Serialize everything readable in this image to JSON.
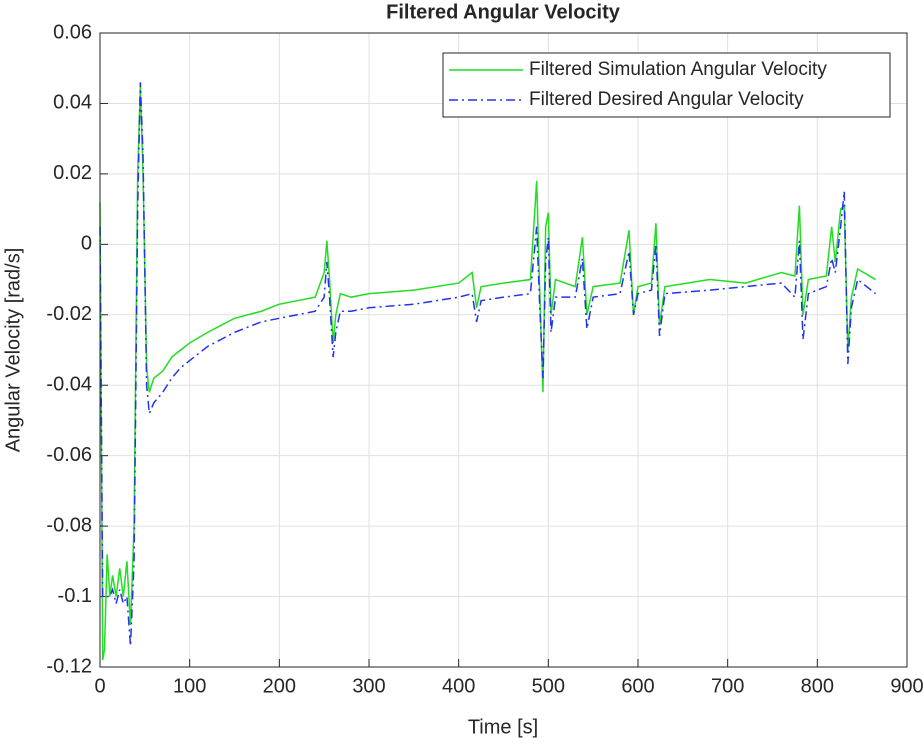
{
  "chart_data": {
    "type": "line",
    "title": "Filtered Angular Velocity",
    "xlabel": "Time [s]",
    "ylabel": "Angular Velocity [rad/s]",
    "x": [
      0,
      3,
      5,
      8,
      11,
      14,
      18,
      22,
      26,
      30,
      34,
      38,
      42,
      45,
      48,
      52,
      55,
      60,
      70,
      80,
      90,
      100,
      120,
      150,
      180,
      200,
      220,
      240,
      250,
      253,
      256,
      260,
      263,
      268,
      280,
      300,
      350,
      400,
      415,
      420,
      425,
      450,
      480,
      487,
      490,
      494,
      497,
      500,
      503,
      508,
      530,
      538,
      543,
      550,
      580,
      590,
      595,
      600,
      615,
      620,
      624,
      630,
      680,
      720,
      760,
      775,
      780,
      784,
      790,
      810,
      816,
      820,
      826,
      830,
      834,
      838,
      845,
      865
    ],
    "series": [
      {
        "name": "Filtered Simulation Angular Velocity",
        "color": "#22dd22",
        "linestyle": "solid",
        "values": [
          0.012,
          -0.118,
          -0.115,
          -0.088,
          -0.1,
          -0.094,
          -0.1,
          -0.092,
          -0.1,
          -0.09,
          -0.108,
          -0.08,
          0.02,
          0.045,
          0.02,
          -0.035,
          -0.042,
          -0.038,
          -0.036,
          -0.032,
          -0.03,
          -0.028,
          -0.025,
          -0.021,
          -0.019,
          -0.017,
          -0.016,
          -0.015,
          -0.008,
          0.001,
          -0.01,
          -0.028,
          -0.02,
          -0.014,
          -0.015,
          -0.014,
          -0.013,
          -0.011,
          -0.008,
          -0.018,
          -0.012,
          -0.011,
          -0.01,
          0.018,
          -0.01,
          -0.042,
          0.005,
          0.009,
          -0.02,
          -0.01,
          -0.012,
          0.002,
          -0.02,
          -0.012,
          -0.011,
          0.004,
          -0.02,
          -0.012,
          -0.011,
          0.006,
          -0.023,
          -0.012,
          -0.01,
          -0.011,
          -0.008,
          -0.009,
          0.011,
          -0.02,
          -0.01,
          -0.009,
          0.005,
          -0.005,
          0.01,
          0.011,
          -0.03,
          -0.015,
          -0.007,
          -0.01
        ]
      },
      {
        "name": "Filtered Desired Angular Velocity",
        "color": "#2233ee",
        "linestyle": "dashdot",
        "values": [
          0.005,
          -0.1,
          -0.1,
          -0.1,
          -0.1,
          -0.098,
          -0.102,
          -0.098,
          -0.102,
          -0.1,
          -0.114,
          -0.09,
          0.01,
          0.046,
          0.025,
          -0.04,
          -0.048,
          -0.045,
          -0.042,
          -0.038,
          -0.035,
          -0.033,
          -0.029,
          -0.025,
          -0.022,
          -0.021,
          -0.02,
          -0.019,
          -0.015,
          -0.005,
          -0.015,
          -0.032,
          -0.025,
          -0.019,
          -0.019,
          -0.018,
          -0.017,
          -0.015,
          -0.014,
          -0.022,
          -0.016,
          -0.015,
          -0.014,
          0.005,
          -0.015,
          -0.038,
          -0.005,
          0.002,
          -0.025,
          -0.015,
          -0.015,
          -0.004,
          -0.024,
          -0.015,
          -0.014,
          -0.002,
          -0.02,
          -0.014,
          -0.013,
          0,
          -0.026,
          -0.014,
          -0.013,
          -0.012,
          -0.011,
          -0.015,
          0.001,
          -0.027,
          -0.014,
          -0.012,
          -0.004,
          -0.008,
          0.005,
          0.015,
          -0.034,
          -0.018,
          -0.01,
          -0.014
        ]
      }
    ],
    "xlim": [
      0,
      900
    ],
    "xticks": [
      0,
      100,
      200,
      300,
      400,
      500,
      600,
      700,
      800,
      900
    ],
    "ylim": [
      -0.12,
      0.06
    ],
    "yticks": [
      -0.12,
      -0.1,
      -0.08,
      -0.06,
      -0.04,
      -0.02,
      0,
      0.02,
      0.04,
      0.06
    ],
    "grid": true,
    "legend_position": "northeast"
  }
}
